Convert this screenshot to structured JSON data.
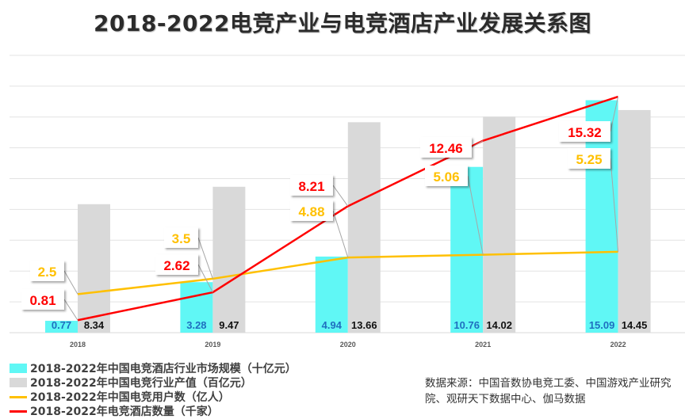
{
  "title": "2018-2022电竞产业与电竞酒店产业发展关系图",
  "chart_data": {
    "type": "bar",
    "title": "2018-2022电竞产业与电竞酒店产业发展关系图",
    "categories": [
      "2018",
      "2019",
      "2020",
      "2021",
      "2022"
    ],
    "ylim": [
      0,
      18
    ],
    "grid": true,
    "legend_position": "bottom-left",
    "series": [
      {
        "name": "2018-2022年中国电竞酒店行业市场规模（十亿元）",
        "type": "bar",
        "color": "#60F7F5",
        "label_color": "#1f6fc0",
        "values": [
          0.77,
          3.28,
          4.94,
          10.76,
          15.09
        ],
        "labels": [
          "0.77",
          "3.28",
          "4.94",
          "10.76",
          "15.09"
        ]
      },
      {
        "name": "2018-2022年中国电竞行业产值（百亿元）",
        "type": "bar",
        "color": "#D9D9D9",
        "label_color": "#111111",
        "values": [
          8.34,
          9.47,
          13.66,
          14.02,
          14.45
        ],
        "labels": [
          "8.34",
          "9.47",
          "13.66",
          "14.02",
          "14.45"
        ]
      },
      {
        "name": "2018-2022年中国电竞用户数（亿人）",
        "type": "line",
        "color": "#FFC000",
        "values": [
          2.5,
          3.5,
          4.88,
          5.06,
          5.25
        ],
        "labels": [
          "2.5",
          "3.5",
          "4.88",
          "5.06",
          "5.25"
        ]
      },
      {
        "name": "2018-2022年电竞酒店数量（千家）",
        "type": "line",
        "color": "#FF0000",
        "values": [
          0.81,
          2.62,
          8.21,
          12.46,
          15.32
        ],
        "labels": [
          "0.81",
          "2.62",
          "8.21",
          "12.46",
          "15.32"
        ]
      }
    ]
  },
  "legend": [
    {
      "label": "2018-2022年中国电竞酒店行业市场规模（十亿元）",
      "color": "#60F7F5",
      "kind": "box"
    },
    {
      "label": "2018-2022年中国电竞行业产值（百亿元）",
      "color": "#D9D9D9",
      "kind": "box"
    },
    {
      "label": "2018-2022年中国电竞用户数（亿人）",
      "color": "#FFC000",
      "kind": "line"
    },
    {
      "label": "2018-2022年电竞酒店数量（千家）",
      "color": "#FF0000",
      "kind": "line"
    }
  ],
  "source": "数据来源：中国音数协电竞工委、中国游戏产业研究院、观研天下数据中心、伽马数据"
}
